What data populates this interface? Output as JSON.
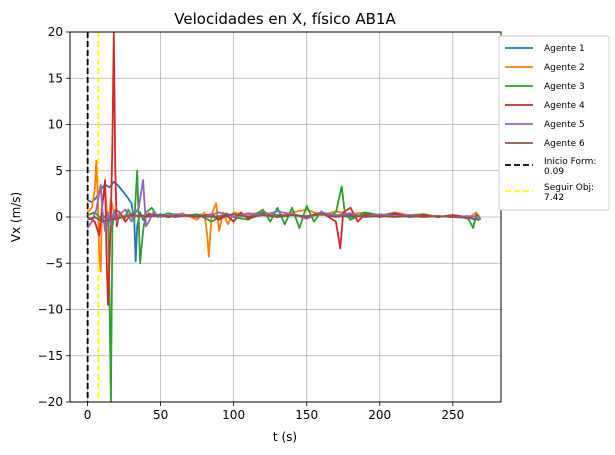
{
  "chart_data": {
    "type": "line",
    "title": "Velocidades en X, físico AB1A",
    "xlabel": "t (s)",
    "ylabel": "Vx (m/s)",
    "xlim": [
      -12,
      283
    ],
    "ylim": [
      -20,
      20
    ],
    "xticks": [
      0,
      50,
      100,
      150,
      200,
      250
    ],
    "yticks": [
      -20,
      -15,
      -10,
      -5,
      0,
      5,
      10,
      15,
      20
    ],
    "xtick_labels": [
      "0",
      "50",
      "100",
      "150",
      "200",
      "250"
    ],
    "ytick_labels": [
      "−20",
      "−15",
      "−10",
      "−5",
      "0",
      "5",
      "10",
      "15",
      "20"
    ],
    "grid": true,
    "legend_position": "upper right, outside plot",
    "series": [
      {
        "name": "Agente 1",
        "color": "#1f77b4",
        "points": [
          [
            0,
            1.8
          ],
          [
            3,
            1.6
          ],
          [
            6,
            2.1
          ],
          [
            9,
            3.0
          ],
          [
            12,
            3.5
          ],
          [
            15,
            3.2
          ],
          [
            18,
            3.8
          ],
          [
            21,
            3.4
          ],
          [
            24,
            2.8
          ],
          [
            27,
            2.2
          ],
          [
            30,
            1.5
          ],
          [
            32,
            -0.5
          ],
          [
            33,
            -4.8
          ],
          [
            34,
            -1.0
          ],
          [
            36,
            0.5
          ],
          [
            38,
            -0.3
          ],
          [
            42,
            0.4
          ],
          [
            46,
            0.1
          ],
          [
            50,
            0.3
          ],
          [
            56,
            0.0
          ],
          [
            62,
            0.2
          ],
          [
            70,
            0.1
          ],
          [
            80,
            0.3
          ],
          [
            90,
            -0.2
          ],
          [
            100,
            0.3
          ],
          [
            110,
            0.1
          ],
          [
            120,
            0.4
          ],
          [
            130,
            0.2
          ],
          [
            140,
            0.3
          ],
          [
            150,
            0.0
          ],
          [
            160,
            0.3
          ],
          [
            170,
            0.2
          ],
          [
            180,
            0.0
          ],
          [
            190,
            0.2
          ],
          [
            200,
            0.1
          ],
          [
            210,
            0.3
          ],
          [
            220,
            0.0
          ],
          [
            230,
            0.1
          ],
          [
            240,
            0.1
          ],
          [
            250,
            0.0
          ],
          [
            260,
            0.1
          ],
          [
            265,
            -0.3
          ],
          [
            268,
            0.2
          ]
        ]
      },
      {
        "name": "Agente 2",
        "color": "#ff7f0e",
        "points": [
          [
            0,
            0.5
          ],
          [
            3,
            1.0
          ],
          [
            5,
            3.0
          ],
          [
            6,
            6.1
          ],
          [
            7,
            2.0
          ],
          [
            8,
            -4.0
          ],
          [
            9,
            -5.9
          ],
          [
            10,
            1.5
          ],
          [
            12,
            3.0
          ],
          [
            14,
            -1.0
          ],
          [
            16,
            2.0
          ],
          [
            18,
            0.5
          ],
          [
            22,
            0.0
          ],
          [
            28,
            0.3
          ],
          [
            35,
            0.1
          ],
          [
            45,
            0.3
          ],
          [
            55,
            0.0
          ],
          [
            65,
            0.4
          ],
          [
            75,
            -0.3
          ],
          [
            80,
            0.5
          ],
          [
            82,
            -2.0
          ],
          [
            83,
            -4.3
          ],
          [
            85,
            0.3
          ],
          [
            88,
            1.5
          ],
          [
            90,
            -1.5
          ],
          [
            93,
            0.5
          ],
          [
            96,
            -0.8
          ],
          [
            100,
            0.5
          ],
          [
            110,
            0.2
          ],
          [
            120,
            0.6
          ],
          [
            130,
            0.0
          ],
          [
            140,
            0.5
          ],
          [
            150,
            0.8
          ],
          [
            160,
            0.2
          ],
          [
            170,
            0.6
          ],
          [
            180,
            0.3
          ],
          [
            190,
            0.5
          ],
          [
            200,
            0.0
          ],
          [
            210,
            0.5
          ],
          [
            220,
            0.2
          ],
          [
            230,
            0.3
          ],
          [
            240,
            0.0
          ],
          [
            250,
            0.2
          ],
          [
            260,
            -0.2
          ],
          [
            266,
            0.5
          ],
          [
            269,
            -0.2
          ]
        ]
      },
      {
        "name": "Agente 3",
        "color": "#2ca02c",
        "points": [
          [
            0,
            0.2
          ],
          [
            5,
            0.5
          ],
          [
            10,
            -0.3
          ],
          [
            14,
            0.5
          ],
          [
            15,
            -8.0
          ],
          [
            16,
            -20.0
          ],
          [
            17,
            -1.0
          ],
          [
            19,
            0.8
          ],
          [
            22,
            0.5
          ],
          [
            25,
            -0.3
          ],
          [
            28,
            0.8
          ],
          [
            32,
            -0.5
          ],
          [
            34,
            5.0
          ],
          [
            36,
            -5.0
          ],
          [
            38,
            -1.5
          ],
          [
            40,
            0.5
          ],
          [
            44,
            1.0
          ],
          [
            48,
            0.0
          ],
          [
            55,
            0.4
          ],
          [
            65,
            0.1
          ],
          [
            75,
            0.3
          ],
          [
            85,
            -0.5
          ],
          [
            95,
            0.4
          ],
          [
            100,
            0.0
          ],
          [
            110,
            -0.3
          ],
          [
            120,
            0.8
          ],
          [
            125,
            -0.5
          ],
          [
            130,
            1.0
          ],
          [
            135,
            -0.8
          ],
          [
            140,
            1.0
          ],
          [
            145,
            -1.2
          ],
          [
            150,
            1.2
          ],
          [
            155,
            -0.5
          ],
          [
            160,
            0.6
          ],
          [
            165,
            0.0
          ],
          [
            170,
            0.5
          ],
          [
            174,
            3.3
          ],
          [
            176,
            0.5
          ],
          [
            180,
            -0.3
          ],
          [
            190,
            0.5
          ],
          [
            200,
            0.2
          ],
          [
            210,
            0.4
          ],
          [
            220,
            0.1
          ],
          [
            230,
            0.3
          ],
          [
            240,
            0.0
          ],
          [
            250,
            0.2
          ],
          [
            260,
            0.0
          ],
          [
            264,
            -1.2
          ],
          [
            266,
            0.3
          ],
          [
            269,
            -0.3
          ]
        ]
      },
      {
        "name": "Agente 4",
        "color": "#d62728",
        "points": [
          [
            0,
            0.0
          ],
          [
            5,
            -0.5
          ],
          [
            8,
            -2.0
          ],
          [
            10,
            1.0
          ],
          [
            12,
            4.0
          ],
          [
            13,
            -4.0
          ],
          [
            14,
            -9.5
          ],
          [
            15,
            -5.0
          ],
          [
            16,
            0.0
          ],
          [
            17,
            8.0
          ],
          [
            18,
            20.0
          ],
          [
            19,
            5.0
          ],
          [
            20,
            -1.0
          ],
          [
            22,
            0.5
          ],
          [
            26,
            -0.5
          ],
          [
            30,
            0.3
          ],
          [
            35,
            0.1
          ],
          [
            45,
            0.3
          ],
          [
            55,
            0.0
          ],
          [
            65,
            0.2
          ],
          [
            75,
            0.0
          ],
          [
            85,
            0.3
          ],
          [
            90,
            -0.3
          ],
          [
            95,
            0.2
          ],
          [
            100,
            -0.5
          ],
          [
            105,
            0.5
          ],
          [
            110,
            -0.2
          ],
          [
            120,
            0.3
          ],
          [
            130,
            0.0
          ],
          [
            140,
            0.3
          ],
          [
            150,
            0.0
          ],
          [
            160,
            0.5
          ],
          [
            170,
            -0.5
          ],
          [
            173,
            -3.4
          ],
          [
            175,
            0.5
          ],
          [
            180,
            1.0
          ],
          [
            185,
            -0.5
          ],
          [
            190,
            0.3
          ],
          [
            200,
            0.0
          ],
          [
            210,
            0.4
          ],
          [
            220,
            0.1
          ],
          [
            230,
            0.2
          ],
          [
            240,
            0.0
          ],
          [
            250,
            0.2
          ],
          [
            260,
            0.0
          ],
          [
            268,
            0.1
          ]
        ]
      },
      {
        "name": "Agente 5",
        "color": "#9467bd",
        "points": [
          [
            0,
            -1.2
          ],
          [
            3,
            -0.5
          ],
          [
            6,
            0.8
          ],
          [
            9,
            3.5
          ],
          [
            10,
            1.0
          ],
          [
            12,
            -1.5
          ],
          [
            14,
            0.5
          ],
          [
            16,
            -0.8
          ],
          [
            18,
            0.6
          ],
          [
            20,
            -0.5
          ],
          [
            22,
            0.3
          ],
          [
            26,
            0.8
          ],
          [
            30,
            -0.5
          ],
          [
            33,
            0.5
          ],
          [
            35,
            1.0
          ],
          [
            38,
            4.0
          ],
          [
            40,
            -1.0
          ],
          [
            42,
            -0.5
          ],
          [
            45,
            0.5
          ],
          [
            50,
            0.0
          ],
          [
            60,
            0.3
          ],
          [
            70,
            0.2
          ],
          [
            80,
            0.0
          ],
          [
            90,
            0.5
          ],
          [
            100,
            0.0
          ],
          [
            110,
            0.4
          ],
          [
            120,
            0.2
          ],
          [
            130,
            0.6
          ],
          [
            140,
            0.3
          ],
          [
            150,
            -0.2
          ],
          [
            160,
            0.5
          ],
          [
            170,
            0.2
          ],
          [
            180,
            0.4
          ],
          [
            190,
            0.0
          ],
          [
            200,
            0.3
          ],
          [
            210,
            0.1
          ],
          [
            220,
            0.2
          ],
          [
            230,
            0.0
          ],
          [
            240,
            0.1
          ],
          [
            250,
            0.0
          ],
          [
            260,
            0.1
          ],
          [
            268,
            0.0
          ]
        ]
      },
      {
        "name": "Agente 6",
        "color": "#8c564b",
        "points": [
          [
            0,
            -0.3
          ],
          [
            5,
            0.0
          ],
          [
            10,
            -0.5
          ],
          [
            15,
            -0.3
          ],
          [
            20,
            -0.2
          ],
          [
            30,
            0.2
          ],
          [
            40,
            0.0
          ],
          [
            50,
            0.2
          ],
          [
            60,
            0.0
          ],
          [
            70,
            0.2
          ],
          [
            80,
            0.0
          ],
          [
            90,
            0.1
          ],
          [
            100,
            0.3
          ],
          [
            110,
            0.0
          ],
          [
            120,
            0.2
          ],
          [
            130,
            0.0
          ],
          [
            140,
            0.2
          ],
          [
            150,
            0.1
          ],
          [
            160,
            0.3
          ],
          [
            170,
            0.0
          ],
          [
            180,
            0.2
          ],
          [
            190,
            0.0
          ],
          [
            200,
            0.1
          ],
          [
            210,
            0.0
          ],
          [
            220,
            0.1
          ],
          [
            230,
            0.0
          ],
          [
            240,
            0.1
          ],
          [
            250,
            0.0
          ],
          [
            260,
            -0.1
          ],
          [
            268,
            -0.3
          ]
        ]
      }
    ],
    "vertical_lines": [
      {
        "name": "Inicio Form:",
        "value_label": "0.09",
        "x": 0.09,
        "color": "#000000"
      },
      {
        "name": "Seguir Obj:",
        "value_label": "7.42",
        "x": 7.42,
        "color": "#ffff00"
      }
    ]
  }
}
